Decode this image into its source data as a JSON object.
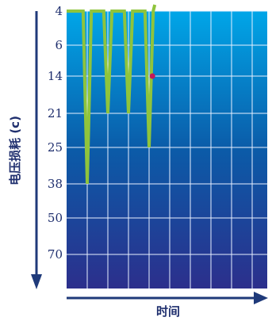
{
  "chart_data": {
    "type": "line",
    "xlabel": "时间",
    "ylabel": "电压损耗 (c)",
    "yticks": [
      "4",
      "6",
      "14",
      "21",
      "25",
      "38",
      "50",
      "70"
    ],
    "y_scale": "categorical-descending",
    "grid": true,
    "series": [
      {
        "color": "#8fc43c",
        "points": [
          {
            "x": 0.0,
            "y": 4
          },
          {
            "x": 0.8,
            "y": 4
          },
          {
            "x": 1.0,
            "y": 38
          },
          {
            "x": 1.2,
            "y": 4
          },
          {
            "x": 1.8,
            "y": 4
          },
          {
            "x": 2.0,
            "y": 21
          },
          {
            "x": 2.2,
            "y": 4
          },
          {
            "x": 2.8,
            "y": 4
          },
          {
            "x": 3.0,
            "y": 21
          },
          {
            "x": 3.2,
            "y": 4
          },
          {
            "x": 3.8,
            "y": 4
          },
          {
            "x": 4.0,
            "y": 25
          },
          {
            "x": 4.2,
            "y": 4
          }
        ]
      }
    ],
    "marker": {
      "x": 4.2,
      "y": 14,
      "color": "#c2185b"
    },
    "colors": {
      "background_top": "#00a6e8",
      "background_bottom": "#2c2f8c",
      "axis": "#1f3a7a",
      "grid": "#e8f0ff"
    }
  }
}
